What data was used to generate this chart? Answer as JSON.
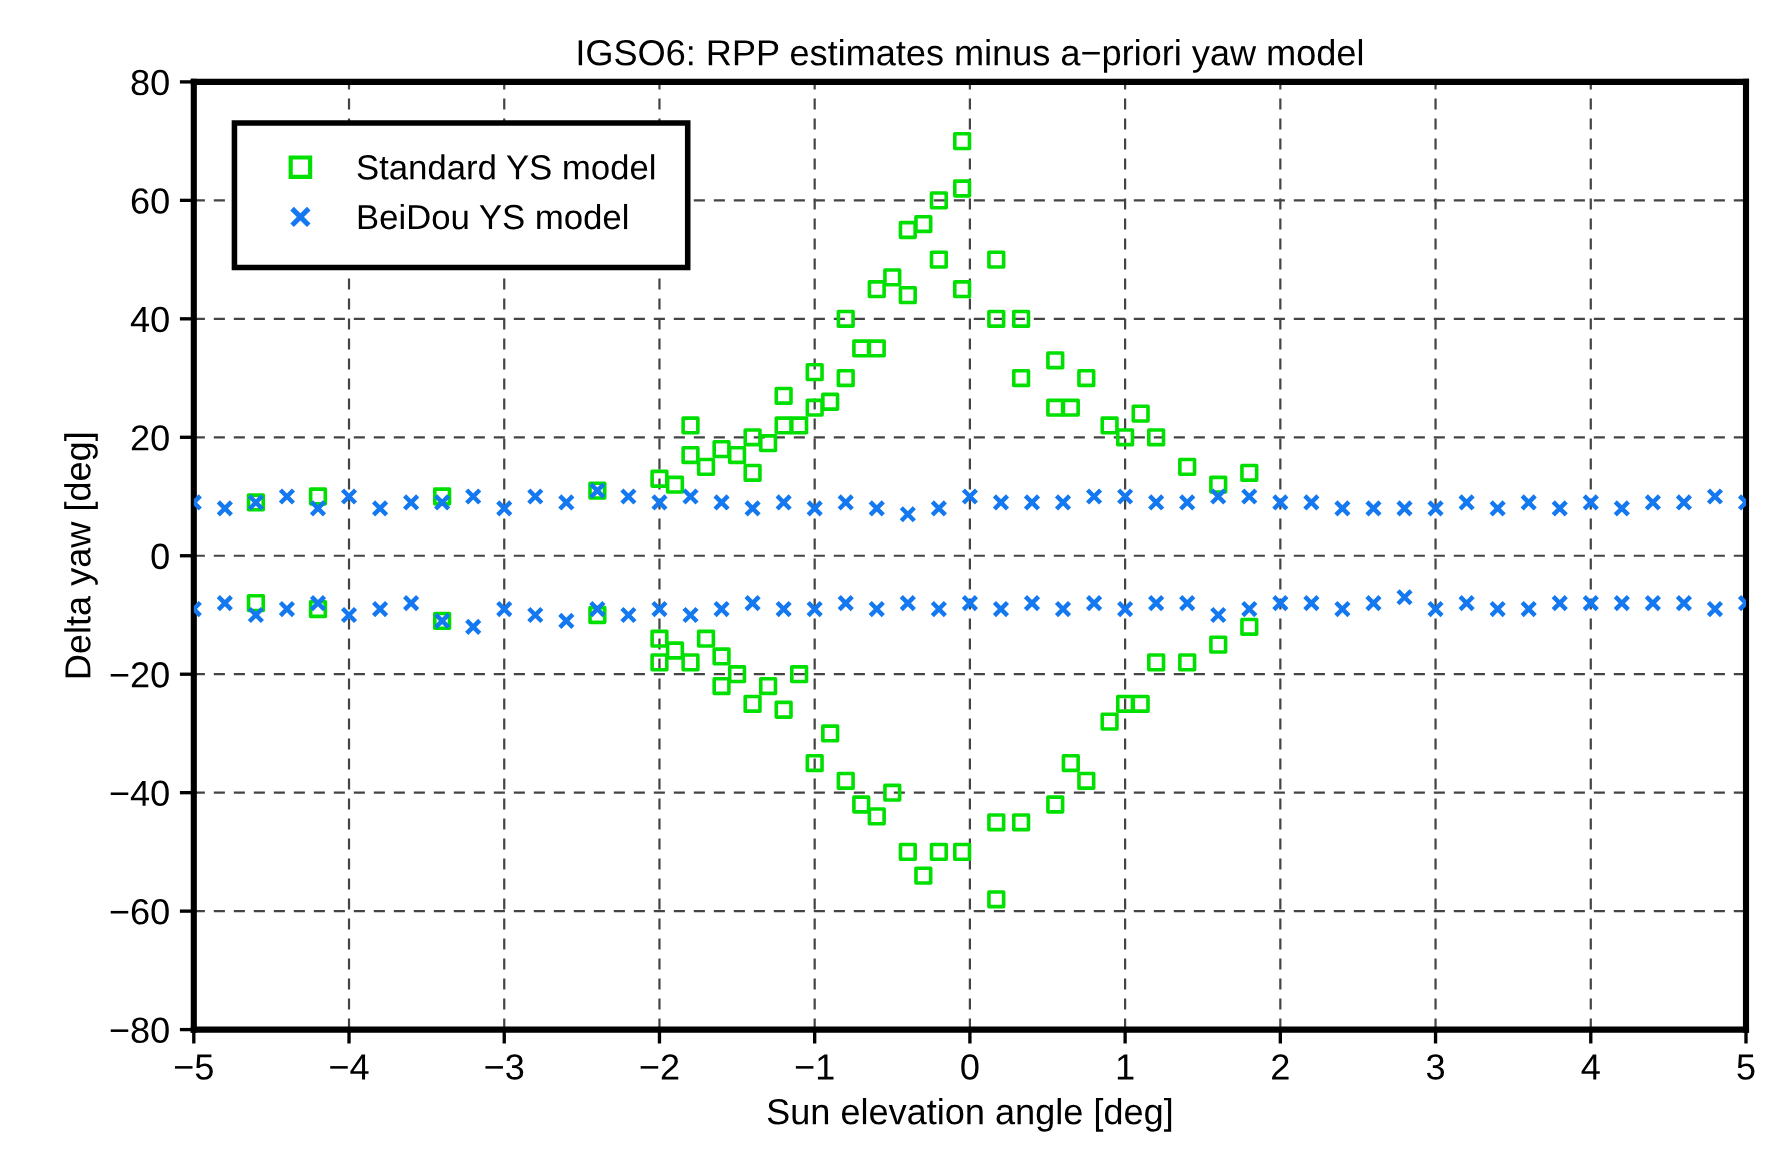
{
  "chart_data": {
    "type": "scatter",
    "title": "IGSO6: RPP estimates minus a−priori yaw model",
    "xlabel": "Sun elevation angle [deg]",
    "ylabel": "Delta yaw [deg]",
    "xlim": [
      -5,
      5
    ],
    "xticks": [
      {
        "value": -5,
        "label": "−5"
      },
      {
        "value": -4,
        "label": "−4"
      },
      {
        "value": -3,
        "label": "−3"
      },
      {
        "value": -2,
        "label": "−2"
      },
      {
        "value": -1,
        "label": "−1"
      },
      0,
      1,
      2,
      3,
      4,
      5
    ],
    "ylim": [
      -80,
      80
    ],
    "yticks": [
      {
        "value": -80,
        "label": "−80"
      },
      {
        "value": -60,
        "label": "−60"
      },
      {
        "value": -40,
        "label": "−40"
      },
      {
        "value": -20,
        "label": "−20"
      },
      0,
      20,
      40,
      60,
      80
    ],
    "grid": true,
    "legend": "top left",
    "series": [
      {
        "name": "Standard YS model",
        "color": "#00e000",
        "marker": "square",
        "x": [
          -4.6,
          -4.6,
          -4.2,
          -4.2,
          -3.4,
          -3.4,
          -2.4,
          -2.4,
          -2.0,
          -2.0,
          -2.0,
          -1.9,
          -1.9,
          -1.8,
          -1.8,
          -1.8,
          -1.7,
          -1.7,
          -1.6,
          -1.6,
          -1.6,
          -1.5,
          -1.5,
          -1.4,
          -1.4,
          -1.4,
          -1.3,
          -1.3,
          -1.2,
          -1.2,
          -1.2,
          -1.1,
          -1.1,
          -1.0,
          -1.0,
          -1.0,
          -0.9,
          -0.9,
          -0.8,
          -0.8,
          -0.8,
          -0.7,
          -0.7,
          -0.6,
          -0.6,
          -0.6,
          -0.5,
          -0.5,
          -0.4,
          -0.4,
          -0.4,
          -0.3,
          -0.3,
          -0.2,
          -0.2,
          -0.2,
          -0.05,
          -0.05,
          -0.05,
          -0.05,
          0.17,
          0.17,
          0.17,
          0.17,
          0.33,
          0.33,
          0.33,
          0.55,
          0.55,
          0.55,
          0.65,
          0.65,
          0.75,
          0.75,
          0.9,
          0.9,
          1.0,
          1.0,
          1.1,
          1.1,
          1.2,
          1.2,
          1.4,
          1.4,
          1.6,
          1.6,
          1.8,
          1.8
        ],
        "values": [
          9,
          -8,
          10,
          -9,
          10,
          -11,
          11,
          -10,
          13,
          -18,
          -14,
          12,
          -16,
          22,
          17,
          -18,
          15,
          -14,
          18,
          -22,
          -17,
          17,
          -20,
          20,
          14,
          -25,
          19,
          -22,
          27,
          22,
          -26,
          22,
          -20,
          31,
          25,
          -35,
          26,
          -30,
          40,
          30,
          -38,
          35,
          -42,
          45,
          35,
          -44,
          47,
          -40,
          55,
          44,
          -50,
          56,
          -54,
          60,
          50,
          -50,
          70,
          62,
          45,
          -50,
          50,
          40,
          -58,
          -45,
          40,
          30,
          -45,
          33,
          25,
          -42,
          25,
          -35,
          30,
          -38,
          22,
          -28,
          20,
          -25,
          24,
          -25,
          20,
          -18,
          15,
          -18,
          12,
          -15,
          14,
          -12
        ]
      },
      {
        "name": "BeiDou YS model",
        "color": "#1478f0",
        "marker": "cross",
        "x": [
          -5,
          -5,
          -4.8,
          -4.8,
          -4.6,
          -4.6,
          -4.4,
          -4.4,
          -4.2,
          -4.2,
          -4.0,
          -4.0,
          -3.8,
          -3.8,
          -3.6,
          -3.6,
          -3.4,
          -3.4,
          -3.2,
          -3.2,
          -3.0,
          -3.0,
          -2.8,
          -2.8,
          -2.6,
          -2.6,
          -2.4,
          -2.4,
          -2.2,
          -2.2,
          -2.0,
          -2.0,
          -1.8,
          -1.8,
          -1.6,
          -1.6,
          -1.4,
          -1.4,
          -1.2,
          -1.2,
          -1.0,
          -1.0,
          -0.8,
          -0.8,
          -0.6,
          -0.6,
          -0.4,
          -0.4,
          -0.2,
          -0.2,
          0,
          0,
          0.2,
          0.2,
          0.4,
          0.4,
          0.6,
          0.6,
          0.8,
          0.8,
          1.0,
          1.0,
          1.2,
          1.2,
          1.4,
          1.4,
          1.6,
          1.6,
          1.8,
          1.8,
          2.0,
          2.0,
          2.2,
          2.2,
          2.4,
          2.4,
          2.6,
          2.6,
          2.8,
          2.8,
          3.0,
          3.0,
          3.2,
          3.2,
          3.4,
          3.4,
          3.6,
          3.6,
          3.8,
          3.8,
          4.0,
          4.0,
          4.2,
          4.2,
          4.4,
          4.4,
          4.6,
          4.6,
          4.8,
          4.8,
          5,
          5
        ],
        "values": [
          9,
          -9,
          8,
          -8,
          9,
          -10,
          10,
          -9,
          8,
          -8,
          10,
          -10,
          8,
          -9,
          9,
          -8,
          9,
          -11,
          10,
          -12,
          8,
          -9,
          10,
          -10,
          9,
          -11,
          11,
          -9,
          10,
          -10,
          9,
          -9,
          10,
          -10,
          9,
          -9,
          8,
          -8,
          9,
          -9,
          8,
          -9,
          9,
          -8,
          8,
          -9,
          7,
          -8,
          8,
          -9,
          10,
          -8,
          9,
          -9,
          9,
          -8,
          9,
          -9,
          10,
          -8,
          10,
          -9,
          9,
          -8,
          9,
          -8,
          10,
          -10,
          10,
          -9,
          9,
          -8,
          9,
          -8,
          8,
          -9,
          8,
          -8,
          8,
          -7,
          8,
          -9,
          9,
          -8,
          8,
          -9,
          9,
          -9,
          8,
          -8,
          9,
          -8,
          8,
          -8,
          9,
          -8,
          9,
          -8,
          10,
          -9,
          9,
          -8
        ]
      }
    ]
  }
}
